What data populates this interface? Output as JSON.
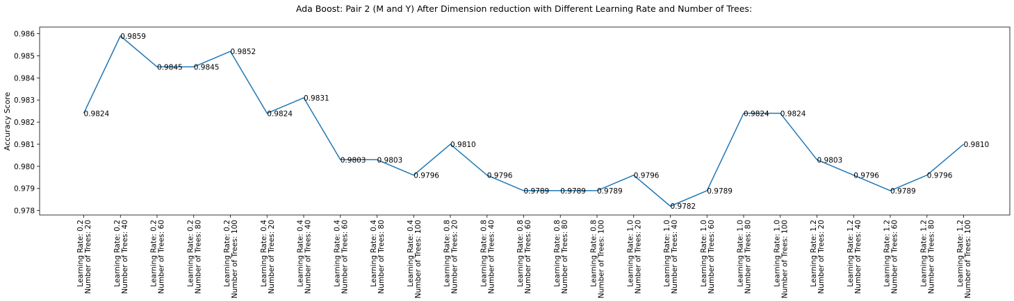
{
  "chart_data": {
    "type": "line",
    "title": "Ada Boost: Pair 2 (M and Y) After Dimension reduction with Different Learning Rate and Number of Trees:",
    "xlabel": "",
    "ylabel": "Accuracy Score",
    "ylim": [
      0.9778,
      0.9863
    ],
    "yticks": [
      0.978,
      0.979,
      0.98,
      0.981,
      0.982,
      0.983,
      0.984,
      0.985,
      0.986
    ],
    "ytick_labels": [
      "0.978",
      "0.979",
      "0.980",
      "0.981",
      "0.982",
      "0.983",
      "0.984",
      "0.985",
      "0.986"
    ],
    "grid": false,
    "legend": "none",
    "line_color": "#1f77b4",
    "categories": [
      "Learning Rate: 0.2\nNumber of Trees: 20",
      "Learning Rate: 0.2\nNumber of Trees: 40",
      "Learning Rate: 0.2\nNumber of Trees: 60",
      "Learning Rate: 0.2\nNumber of Trees: 80",
      "Learning Rate: 0.2\nNumber of Trees: 100",
      "Learning Rate: 0.4\nNumber of Trees: 20",
      "Learning Rate: 0.4\nNumber of Trees: 40",
      "Learning Rate: 0.4\nNumber of Trees: 60",
      "Learning Rate: 0.4\nNumber of Trees: 80",
      "Learning Rate: 0.4\nNumber of Trees: 100",
      "Learning Rate: 0.8\nNumber of Trees: 20",
      "Learning Rate: 0.8\nNumber of Trees: 40",
      "Learning Rate: 0.8\nNumber of Trees: 60",
      "Learning Rate: 0.8\nNumber of Trees: 80",
      "Learning Rate: 0.8\nNumber of Trees: 100",
      "Learning Rate: 1.0\nNumber of Trees: 20",
      "Learning Rate: 1.0\nNumber of Trees: 40",
      "Learning Rate: 1.0\nNumber of Trees: 60",
      "Learning Rate: 1.0\nNumber of Trees: 80",
      "Learning Rate: 1.0\nNumber of Trees: 100",
      "Learning Rate: 1.2\nNumber of Trees: 20",
      "Learning Rate: 1.2\nNumber of Trees: 40",
      "Learning Rate: 1.2\nNumber of Trees: 60",
      "Learning Rate: 1.2\nNumber of Trees: 80",
      "Learning Rate: 1.2\nNumber of Trees: 100"
    ],
    "values": [
      0.9824,
      0.9859,
      0.9845,
      0.9845,
      0.9852,
      0.9824,
      0.9831,
      0.9803,
      0.9803,
      0.9796,
      0.981,
      0.9796,
      0.9789,
      0.9789,
      0.9789,
      0.9796,
      0.9782,
      0.9789,
      0.9824,
      0.9824,
      0.9803,
      0.9796,
      0.9789,
      0.9796,
      0.981
    ],
    "data_labels": [
      "0.9824",
      "0.9859",
      "0.9845",
      "0.9845",
      "0.9852",
      "0.9824",
      "0.9831",
      "0.9803",
      "0.9803",
      "0.9796",
      "0.9810",
      "0.9796",
      "0.9789",
      "0.9789",
      "0.9789",
      "0.9796",
      "0.9782",
      "0.9789",
      "0.9824",
      "0.9824",
      "0.9803",
      "0.9796",
      "0.9789",
      "0.9796",
      "0.9810"
    ]
  }
}
